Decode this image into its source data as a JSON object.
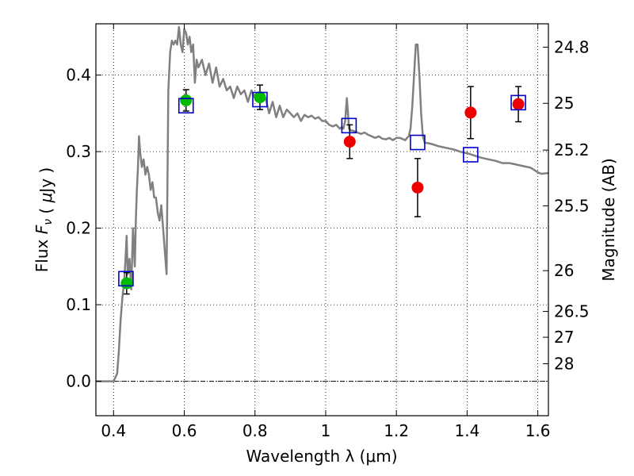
{
  "chart_data": {
    "type": "scatter",
    "xlabel": "Wavelength  λ (μm)",
    "ylabel": "Flux  F_ν  ( μJy )",
    "ylabel_right": "Magnitude (AB)",
    "xlim": [
      0.35,
      1.63
    ],
    "ylim": [
      -0.045,
      0.467
    ],
    "x_ticks": [
      0.4,
      0.6,
      0.8,
      1.0,
      1.2,
      1.4,
      1.6
    ],
    "x_tick_labels": [
      "0.4",
      "0.6",
      "0.8",
      "1",
      "1.2",
      "1.4",
      "1.6"
    ],
    "y_ticks": [
      0.0,
      0.1,
      0.2,
      0.3,
      0.4
    ],
    "y_tick_labels": [
      "0.0",
      "0.1",
      "0.2",
      "0.3",
      "0.4"
    ],
    "right_ticks": [
      {
        "flux": 0.4365,
        "label": "24.8"
      },
      {
        "flux": 0.3631,
        "label": "25"
      },
      {
        "flux": 0.302,
        "label": "25.2"
      },
      {
        "flux": 0.2291,
        "label": "25.5"
      },
      {
        "flux": 0.1445,
        "label": "26"
      },
      {
        "flux": 0.0912,
        "label": "26.5"
      },
      {
        "flux": 0.0575,
        "label": "27"
      },
      {
        "flux": 0.0229,
        "label": "28"
      }
    ],
    "grid": true,
    "zero_line": true,
    "colors": {
      "model": "#808080",
      "green_points": "#00bb00",
      "red_points": "#ee0000",
      "model_photometry": "#0000cc",
      "errorbar": "#000000"
    },
    "series": [
      {
        "kind": "line",
        "points": [
          [
            0.35,
            0.0
          ],
          [
            0.4,
            0.0
          ],
          [
            0.41,
            0.01
          ],
          [
            0.415,
            0.04
          ],
          [
            0.42,
            0.08
          ],
          [
            0.425,
            0.11
          ],
          [
            0.43,
            0.13
          ],
          [
            0.435,
            0.17
          ],
          [
            0.437,
            0.19
          ],
          [
            0.44,
            0.14
          ],
          [
            0.445,
            0.16
          ],
          [
            0.45,
            0.12
          ],
          [
            0.455,
            0.2
          ],
          [
            0.46,
            0.15
          ],
          [
            0.463,
            0.21
          ],
          [
            0.466,
            0.25
          ],
          [
            0.469,
            0.28
          ],
          [
            0.472,
            0.32
          ],
          [
            0.475,
            0.3
          ],
          [
            0.48,
            0.28
          ],
          [
            0.485,
            0.29
          ],
          [
            0.49,
            0.27
          ],
          [
            0.495,
            0.28
          ],
          [
            0.5,
            0.27
          ],
          [
            0.505,
            0.25
          ],
          [
            0.51,
            0.26
          ],
          [
            0.515,
            0.24
          ],
          [
            0.52,
            0.24
          ],
          [
            0.525,
            0.22
          ],
          [
            0.53,
            0.21
          ],
          [
            0.535,
            0.23
          ],
          [
            0.54,
            0.2
          ],
          [
            0.545,
            0.17
          ],
          [
            0.55,
            0.14
          ],
          [
            0.555,
            0.38
          ],
          [
            0.56,
            0.43
          ],
          [
            0.565,
            0.445
          ],
          [
            0.57,
            0.44
          ],
          [
            0.575,
            0.445
          ],
          [
            0.58,
            0.44
          ],
          [
            0.585,
            0.463
          ],
          [
            0.59,
            0.44
          ],
          [
            0.595,
            0.43
          ],
          [
            0.6,
            0.46
          ],
          [
            0.605,
            0.455
          ],
          [
            0.61,
            0.44
          ],
          [
            0.615,
            0.45
          ],
          [
            0.62,
            0.43
          ],
          [
            0.625,
            0.44
          ],
          [
            0.63,
            0.39
          ],
          [
            0.635,
            0.42
          ],
          [
            0.64,
            0.41
          ],
          [
            0.65,
            0.42
          ],
          [
            0.66,
            0.4
          ],
          [
            0.67,
            0.415
          ],
          [
            0.68,
            0.39
          ],
          [
            0.69,
            0.41
          ],
          [
            0.7,
            0.385
          ],
          [
            0.71,
            0.395
          ],
          [
            0.72,
            0.38
          ],
          [
            0.73,
            0.385
          ],
          [
            0.74,
            0.37
          ],
          [
            0.75,
            0.385
          ],
          [
            0.76,
            0.375
          ],
          [
            0.77,
            0.38
          ],
          [
            0.78,
            0.365
          ],
          [
            0.79,
            0.38
          ],
          [
            0.8,
            0.37
          ],
          [
            0.81,
            0.375
          ],
          [
            0.82,
            0.365
          ],
          [
            0.83,
            0.37
          ],
          [
            0.84,
            0.35
          ],
          [
            0.85,
            0.365
          ],
          [
            0.86,
            0.345
          ],
          [
            0.87,
            0.36
          ],
          [
            0.88,
            0.345
          ],
          [
            0.89,
            0.355
          ],
          [
            0.9,
            0.35
          ],
          [
            0.91,
            0.345
          ],
          [
            0.92,
            0.35
          ],
          [
            0.93,
            0.34
          ],
          [
            0.94,
            0.348
          ],
          [
            0.95,
            0.345
          ],
          [
            0.96,
            0.347
          ],
          [
            0.97,
            0.343
          ],
          [
            0.98,
            0.345
          ],
          [
            0.99,
            0.34
          ],
          [
            1.0,
            0.34
          ],
          [
            1.01,
            0.335
          ],
          [
            1.02,
            0.333
          ],
          [
            1.03,
            0.335
          ],
          [
            1.04,
            0.33
          ],
          [
            1.045,
            0.332
          ],
          [
            1.05,
            0.33
          ],
          [
            1.055,
            0.34
          ],
          [
            1.06,
            0.37
          ],
          [
            1.063,
            0.35
          ],
          [
            1.066,
            0.33
          ],
          [
            1.07,
            0.328
          ],
          [
            1.08,
            0.327
          ],
          [
            1.09,
            0.325
          ],
          [
            1.1,
            0.323
          ],
          [
            1.11,
            0.325
          ],
          [
            1.12,
            0.322
          ],
          [
            1.13,
            0.32
          ],
          [
            1.14,
            0.318
          ],
          [
            1.15,
            0.32
          ],
          [
            1.16,
            0.317
          ],
          [
            1.17,
            0.316
          ],
          [
            1.18,
            0.318
          ],
          [
            1.19,
            0.315
          ],
          [
            1.2,
            0.318
          ],
          [
            1.21,
            0.318
          ],
          [
            1.22,
            0.316
          ],
          [
            1.225,
            0.315
          ],
          [
            1.23,
            0.318
          ],
          [
            1.235,
            0.32
          ],
          [
            1.24,
            0.33
          ],
          [
            1.245,
            0.36
          ],
          [
            1.25,
            0.4
          ],
          [
            1.255,
            0.44
          ],
          [
            1.26,
            0.44
          ],
          [
            1.265,
            0.4
          ],
          [
            1.27,
            0.35
          ],
          [
            1.275,
            0.32
          ],
          [
            1.28,
            0.312
          ],
          [
            1.3,
            0.31
          ],
          [
            1.32,
            0.307
          ],
          [
            1.34,
            0.305
          ],
          [
            1.36,
            0.303
          ],
          [
            1.38,
            0.3
          ],
          [
            1.4,
            0.298
          ],
          [
            1.42,
            0.295
          ],
          [
            1.44,
            0.292
          ],
          [
            1.46,
            0.29
          ],
          [
            1.48,
            0.288
          ],
          [
            1.5,
            0.285
          ],
          [
            1.52,
            0.285
          ],
          [
            1.54,
            0.283
          ],
          [
            1.56,
            0.281
          ],
          [
            1.58,
            0.279
          ],
          [
            1.6,
            0.273
          ],
          [
            1.61,
            0.271
          ],
          [
            1.63,
            0.272
          ]
        ]
      },
      {
        "kind": "points",
        "marker": "circle",
        "color": "#00bb00",
        "points": [
          {
            "x": 0.437,
            "y": 0.128,
            "err": 0.014
          },
          {
            "x": 0.605,
            "y": 0.367,
            "err": 0.014
          },
          {
            "x": 0.814,
            "y": 0.371,
            "err": 0.016
          }
        ]
      },
      {
        "kind": "points",
        "marker": "circle",
        "color": "#ee0000",
        "points": [
          {
            "x": 1.068,
            "y": 0.313,
            "err": 0.022
          },
          {
            "x": 1.26,
            "y": 0.253,
            "err": 0.038
          },
          {
            "x": 1.41,
            "y": 0.351,
            "err": 0.034
          },
          {
            "x": 1.545,
            "y": 0.362,
            "err": 0.023
          }
        ]
      },
      {
        "kind": "points",
        "marker": "open-square",
        "color": "#0000cc",
        "points": [
          {
            "x": 0.435,
            "y": 0.134
          },
          {
            "x": 0.605,
            "y": 0.36
          },
          {
            "x": 0.814,
            "y": 0.368
          },
          {
            "x": 1.066,
            "y": 0.334
          },
          {
            "x": 1.26,
            "y": 0.312
          },
          {
            "x": 1.41,
            "y": 0.296
          },
          {
            "x": 1.545,
            "y": 0.364
          }
        ]
      }
    ]
  }
}
